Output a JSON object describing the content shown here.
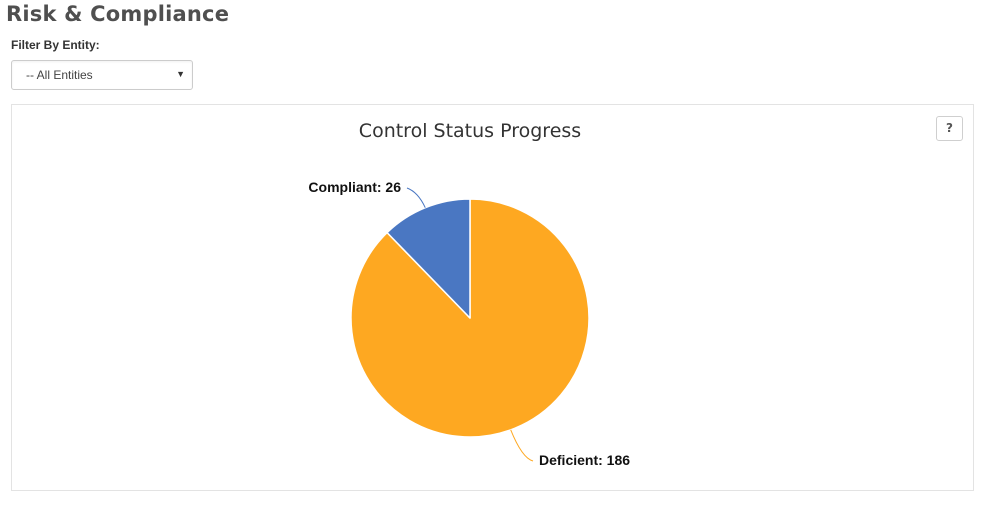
{
  "page": {
    "title": "Risk & Compliance"
  },
  "filter": {
    "label": "Filter By Entity:",
    "selected_value": "-- All Entities",
    "caret_icon": "▼"
  },
  "help": {
    "label": "?"
  },
  "chart_data": {
    "type": "pie",
    "title": "Control Status Progress",
    "slices": [
      {
        "label": "Compliant",
        "value": 26,
        "data_label": "Compliant: 26",
        "color": "#4a77c2"
      },
      {
        "label": "Deficient",
        "value": 186,
        "data_label": "Deficient: 186",
        "color": "#fea821"
      }
    ],
    "legend": "none"
  }
}
